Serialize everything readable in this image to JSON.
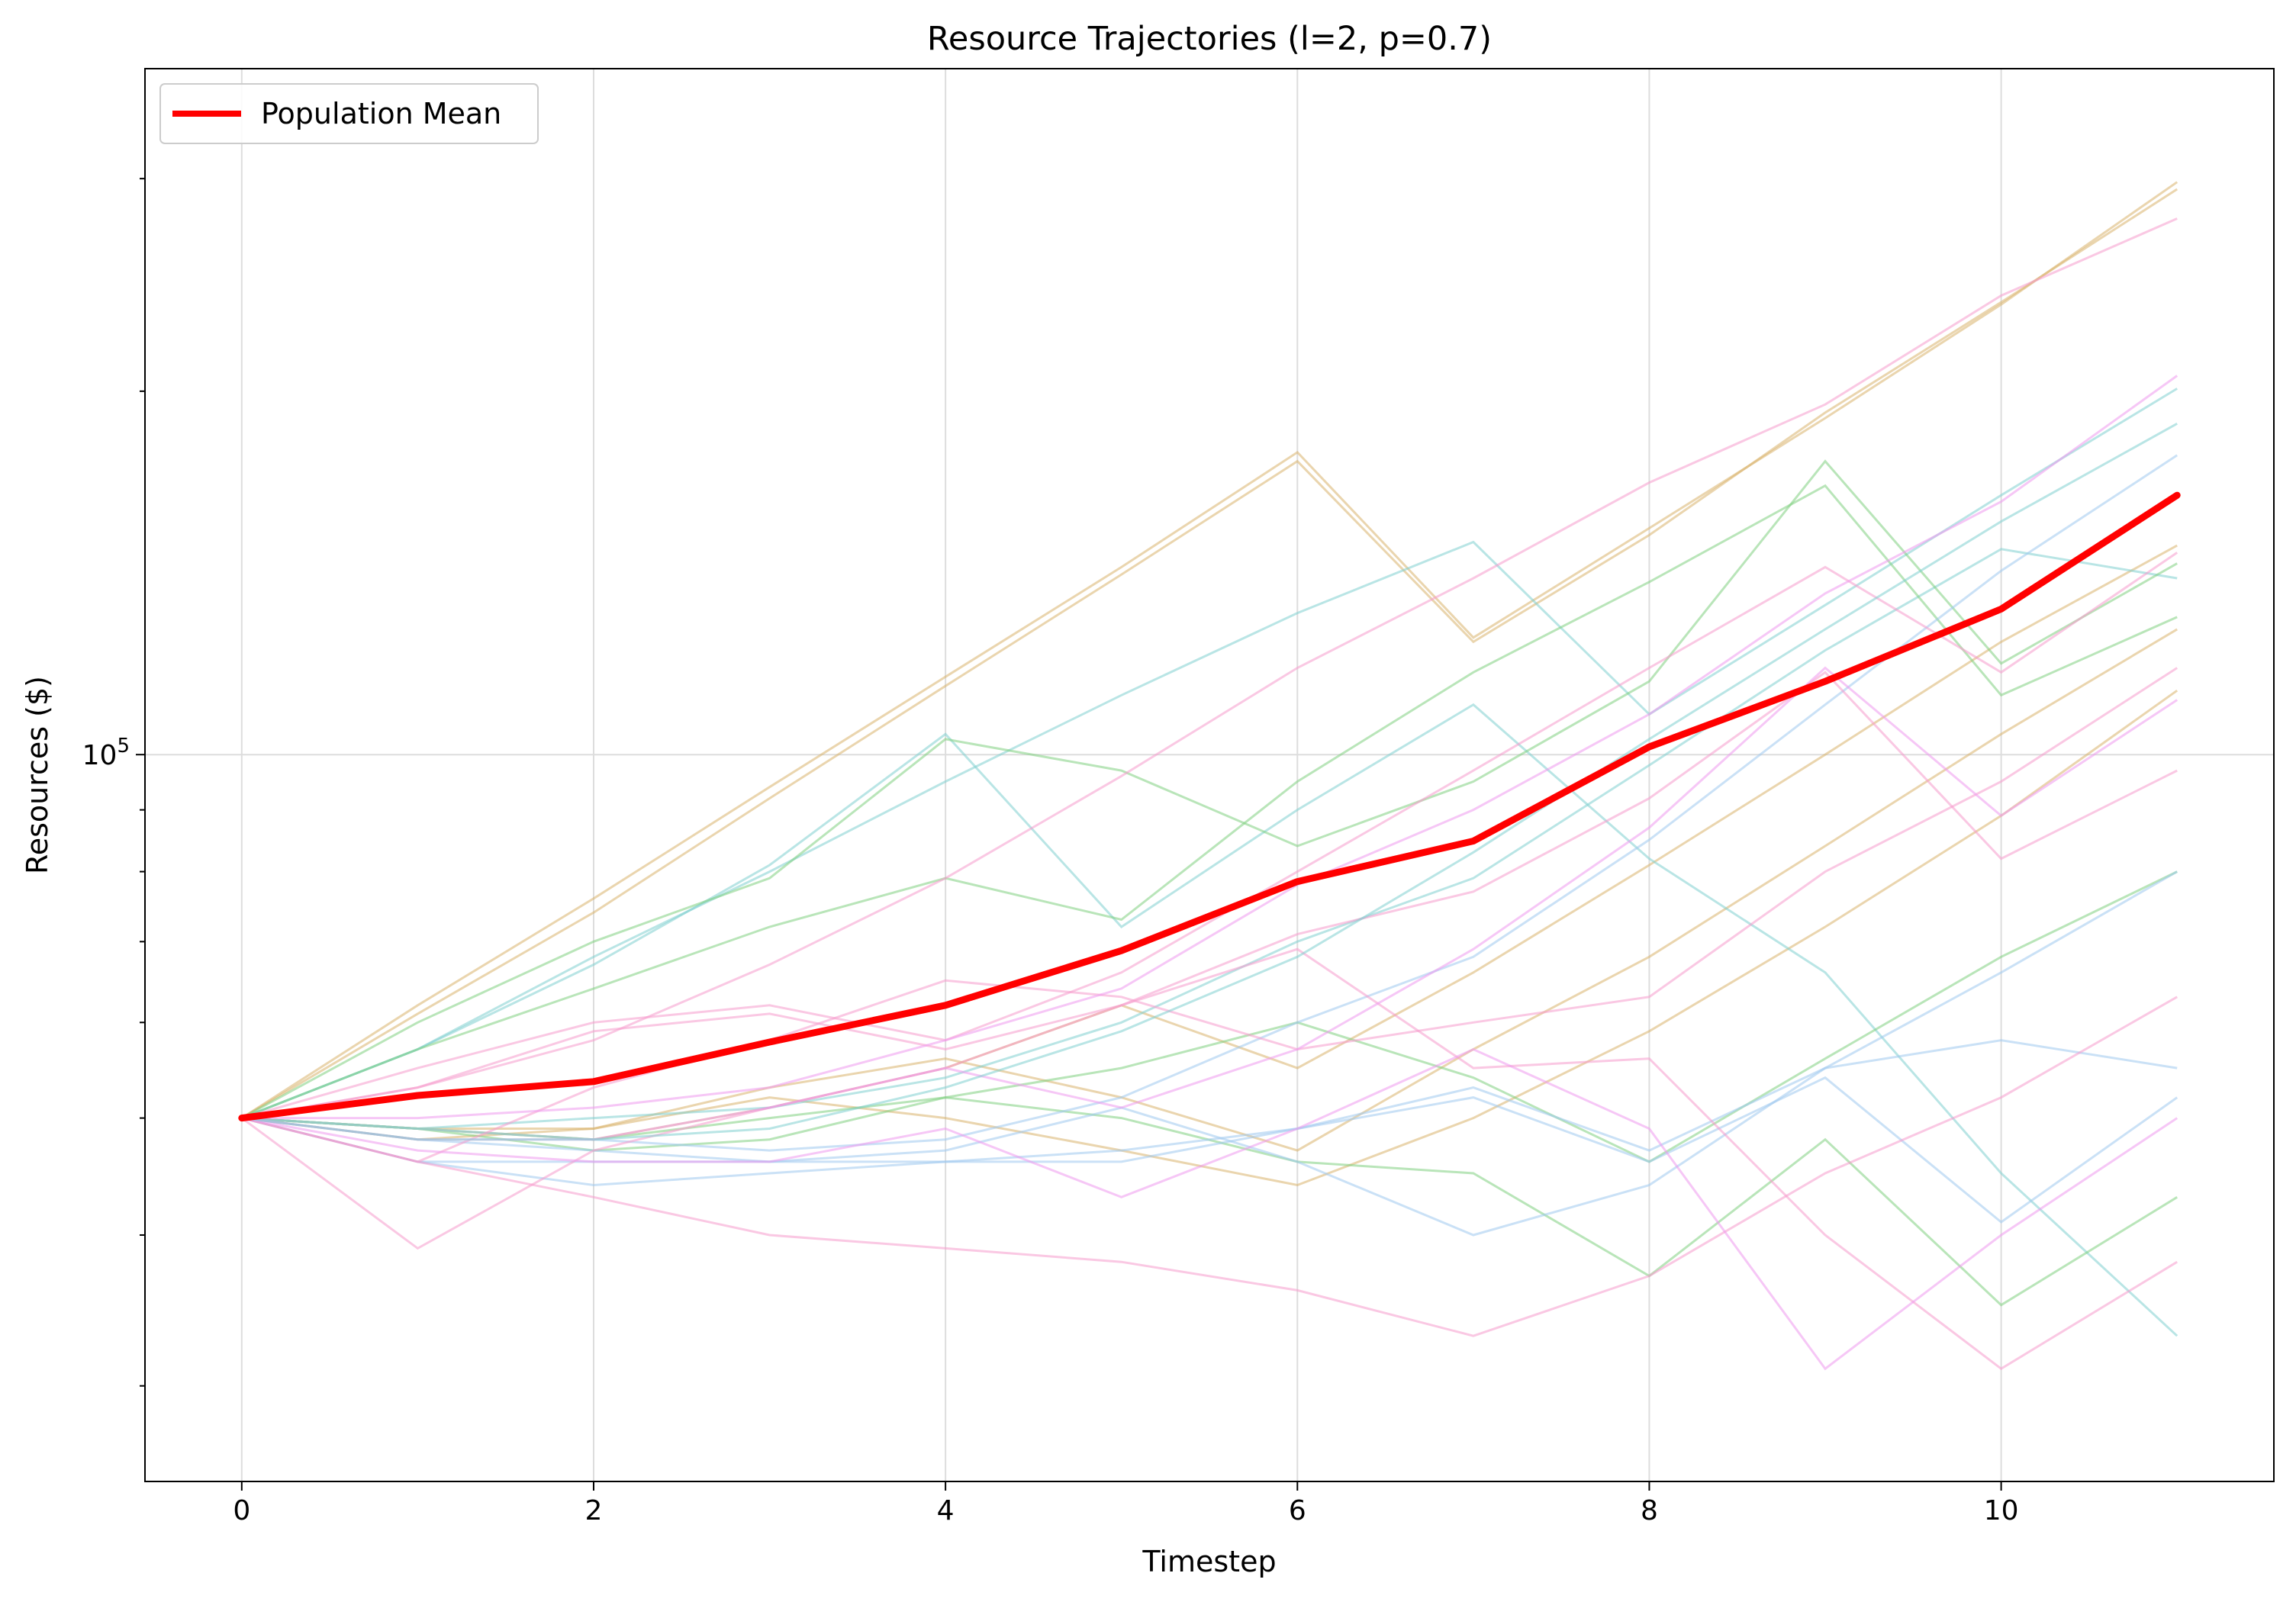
{
  "chart_data": {
    "type": "line",
    "title": "Resource Trajectories (l=2, p=0.7)",
    "xlabel": "Timestep",
    "ylabel": "Resources ($)",
    "yscale": "log",
    "xlim": [
      -0.55,
      11.55
    ],
    "ylim": [
      25000,
      370000
    ],
    "x": [
      0,
      1,
      2,
      3,
      4,
      5,
      6,
      7,
      8,
      9,
      10,
      11
    ],
    "x_ticks": [
      0,
      2,
      4,
      6,
      8,
      10
    ],
    "x_tick_labels": [
      "0",
      "2",
      "4",
      "6",
      "8",
      "10"
    ],
    "y_major_tick": {
      "value": 100000,
      "label_base": "10",
      "label_exp": "5"
    },
    "y_minor_ticks": [
      30000,
      40000,
      50000,
      60000,
      70000,
      80000,
      90000,
      200000,
      300000
    ],
    "grid": true,
    "legend_position": "upper-left",
    "mean_series": {
      "name": "Population Mean",
      "color": "#ff0000",
      "values": [
        50000,
        52200,
        53600,
        57800,
        62000,
        68800,
        78500,
        84800,
        101500,
        115000,
        132000,
        164000
      ]
    },
    "series": [
      {
        "color": "#d9b36b",
        "values": [
          50000,
          61000,
          74000,
          92000,
          114000,
          141000,
          175000,
          124000,
          152000,
          192000,
          237000,
          294000
        ]
      },
      {
        "color": "#d9b36b",
        "values": [
          50000,
          62000,
          76000,
          94000,
          116000,
          143000,
          178000,
          125000,
          154000,
          190000,
          236000,
          298000
        ]
      },
      {
        "color": "#d9b36b",
        "values": [
          50000,
          49000,
          48000,
          51000,
          55000,
          62000,
          55000,
          66000,
          81000,
          100000,
          124000,
          149000
        ]
      },
      {
        "color": "#d9b36b",
        "values": [
          50000,
          49000,
          49000,
          52000,
          50000,
          47000,
          44000,
          50000,
          59000,
          72000,
          89000,
          113000
        ]
      },
      {
        "color": "#d9b36b",
        "values": [
          50000,
          48000,
          49000,
          53000,
          56000,
          52000,
          47000,
          57000,
          68000,
          84000,
          104000,
          127000
        ]
      },
      {
        "color": "#7fcfd0",
        "values": [
          50000,
          57000,
          68000,
          80000,
          95000,
          112000,
          131000,
          150000,
          108000,
          133000,
          164000,
          201000
        ]
      },
      {
        "color": "#7fcfd0",
        "values": [
          50000,
          57000,
          67000,
          81000,
          104000,
          72000,
          90000,
          110000,
          82000,
          66000,
          45000,
          33000
        ]
      },
      {
        "color": "#7fcfd0",
        "values": [
          50000,
          49000,
          50000,
          51000,
          54000,
          60000,
          70000,
          79000,
          98000,
          122000,
          148000,
          140000
        ]
      },
      {
        "color": "#7fd07f",
        "values": [
          50000,
          60000,
          70000,
          79000,
          103000,
          97000,
          84000,
          95000,
          115000,
          175000,
          119000,
          144000
        ]
      },
      {
        "color": "#7fd07f",
        "values": [
          50000,
          57000,
          64000,
          72000,
          79000,
          73000,
          95000,
          117000,
          139000,
          167000,
          112000,
          130000
        ]
      },
      {
        "color": "#7fd07f",
        "values": [
          50000,
          49000,
          48000,
          50000,
          52000,
          55000,
          60000,
          54000,
          46000,
          56000,
          68000,
          80000
        ]
      },
      {
        "color": "#7fd07f",
        "values": [
          50000,
          49000,
          47000,
          48000,
          52000,
          50000,
          46000,
          45000,
          37000,
          48000,
          35000,
          43000
        ]
      },
      {
        "color": "#9fc8ef",
        "values": [
          50000,
          46000,
          44000,
          45000,
          46000,
          46000,
          49000,
          53000,
          47000,
          55000,
          66000,
          80000
        ]
      },
      {
        "color": "#9fc8ef",
        "values": [
          50000,
          49000,
          48000,
          47000,
          48000,
          52000,
          60000,
          68000,
          85000,
          110000,
          142000,
          177000
        ]
      },
      {
        "color": "#9fc8ef",
        "values": [
          50000,
          48000,
          47000,
          46000,
          47000,
          51000,
          46000,
          40000,
          44000,
          55000,
          58000,
          55000
        ]
      },
      {
        "color": "#9fc8ef",
        "values": [
          50000,
          46000,
          46000,
          46000,
          46000,
          47000,
          49000,
          52000,
          46000,
          54000,
          41000,
          52000
        ]
      },
      {
        "color": "#f59acc",
        "values": [
          50000,
          46000,
          53000,
          58000,
          65000,
          63000,
          57000,
          60000,
          63000,
          80000,
          95000,
          118000
        ]
      },
      {
        "color": "#f59acc",
        "values": [
          50000,
          46000,
          43000,
          40000,
          39000,
          38000,
          36000,
          33000,
          37000,
          45000,
          52000,
          63000
        ]
      },
      {
        "color": "#f59acc",
        "values": [
          50000,
          39000,
          47000,
          51000,
          55000,
          62000,
          69000,
          55000,
          56000,
          40000,
          31000,
          38000
        ]
      },
      {
        "color": "#f59acc",
        "values": [
          50000,
          55000,
          60000,
          62000,
          58000,
          66000,
          80000,
          97000,
          118000,
          143000,
          117000,
          147000
        ]
      },
      {
        "color": "#f59acc",
        "values": [
          50000,
          53000,
          59000,
          61000,
          57000,
          62000,
          71000,
          77000,
          92000,
          117000,
          82000,
          97000
        ]
      },
      {
        "color": "#f59acc",
        "values": [
          50000,
          53000,
          58000,
          67000,
          79000,
          96000,
          118000,
          140000,
          168000,
          195000,
          240000,
          278000
        ]
      },
      {
        "color": "#ef99ef",
        "values": [
          50000,
          50000,
          51000,
          53000,
          58000,
          64000,
          78000,
          90000,
          108000,
          136000,
          162000,
          206000
        ]
      },
      {
        "color": "#ef99ef",
        "values": [
          50000,
          48000,
          48000,
          51000,
          55000,
          51000,
          57000,
          69000,
          87000,
          118000,
          89000,
          111000
        ]
      },
      {
        "color": "#ef99ef",
        "values": [
          50000,
          47000,
          46000,
          46000,
          49000,
          43000,
          49000,
          57000,
          49000,
          31000,
          40000,
          50000
        ]
      },
      {
        "color": "#7fcfd0",
        "values": [
          50000,
          48000,
          48000,
          49000,
          53000,
          59000,
          68000,
          83000,
          103000,
          127000,
          156000,
          188000
        ]
      }
    ],
    "legend": [
      {
        "label": "Population Mean"
      }
    ]
  }
}
